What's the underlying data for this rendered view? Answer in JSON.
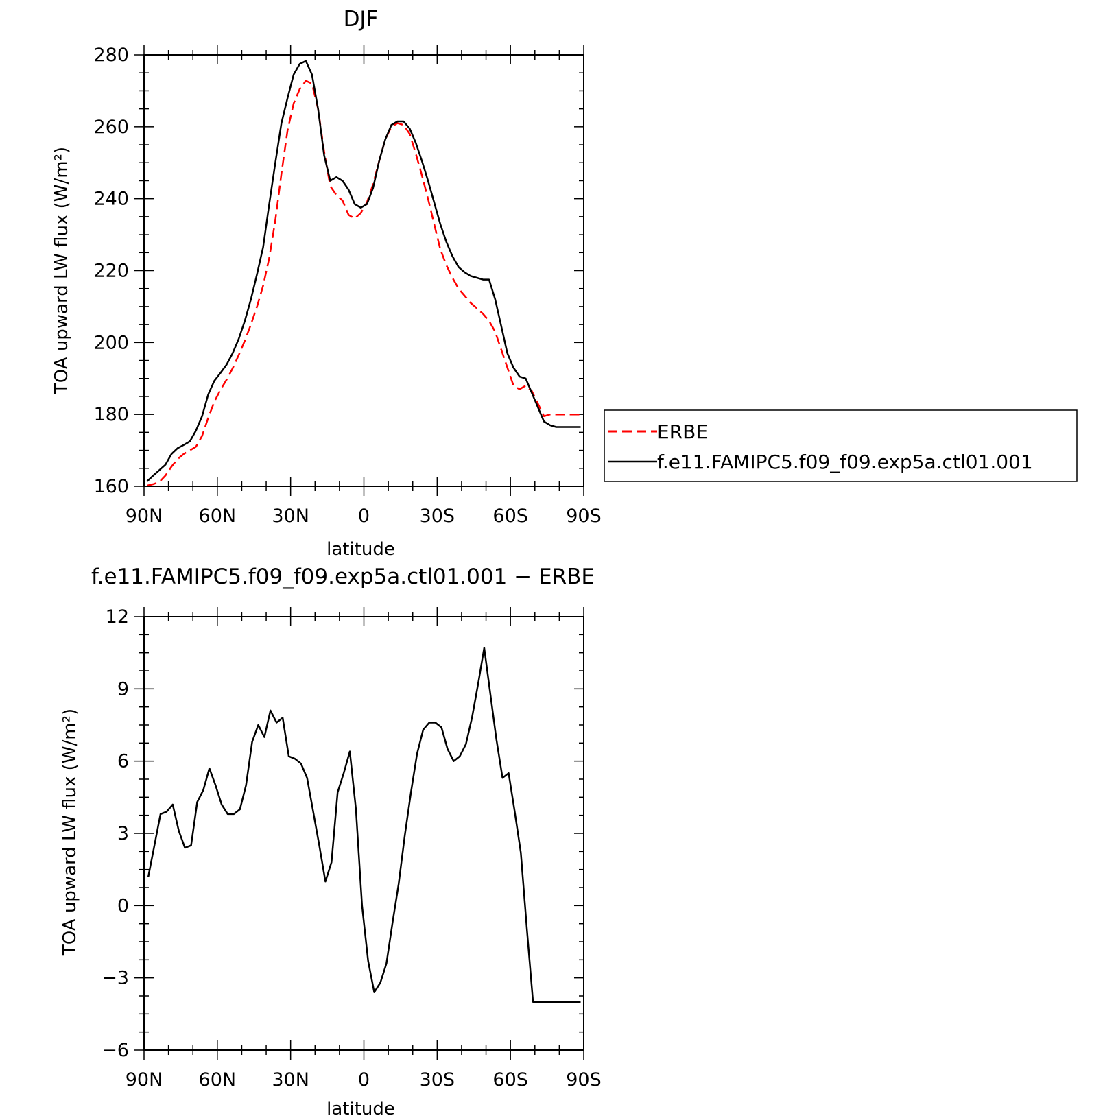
{
  "chart_data": [
    {
      "type": "line",
      "title": "DJF",
      "xlabel": "latitude",
      "ylabel": "TOA upward LW flux (W/m²)",
      "xlim": [
        90,
        -90
      ],
      "ylim": [
        160,
        280
      ],
      "yticks": [
        160,
        180,
        200,
        220,
        240,
        260,
        280
      ],
      "xticks": [
        90,
        60,
        30,
        0,
        -30,
        -60,
        -90
      ],
      "xtick_labels": [
        "90N",
        "60N",
        "30N",
        "0",
        "30S",
        "60S",
        "90S"
      ],
      "legend": {
        "placement": "right",
        "entries": [
          "ERBE",
          "f.e11.FAMIPC5.f09_f09.exp5a.ctl01.001"
        ]
      },
      "series": [
        {
          "name": "ERBE",
          "color": "#ff0000",
          "style": "dashed",
          "x": [
            88.75,
            86.25,
            83.75,
            81.25,
            78.75,
            76.25,
            73.75,
            71.25,
            68.75,
            66.25,
            63.75,
            61.25,
            58.75,
            56.25,
            53.75,
            51.25,
            48.75,
            46.25,
            43.75,
            41.25,
            38.75,
            36.25,
            33.75,
            31.25,
            28.75,
            26.25,
            23.75,
            21.25,
            18.75,
            16.25,
            13.75,
            11.25,
            8.75,
            6.25,
            3.75,
            1.25,
            -1.25,
            -3.75,
            -6.25,
            -8.75,
            -11.25,
            -13.75,
            -16.25,
            -18.75,
            -21.25,
            -23.75,
            -26.25,
            -28.75,
            -31.25,
            -33.75,
            -36.25,
            -38.75,
            -41.25,
            -43.75,
            -46.25,
            -48.75,
            -51.25,
            -53.75,
            -56.25,
            -58.75,
            -61.25,
            -63.75,
            -66.25,
            -68.75,
            -71.25,
            -73.75,
            -76.25,
            -78.75,
            -81.25,
            -83.75,
            -86.25,
            -88.75
          ],
          "y": [
            160.2,
            160.6,
            161.2,
            163.0,
            165.5,
            167.6,
            169.0,
            170.0,
            171.0,
            174.0,
            179.0,
            183.5,
            186.8,
            189.6,
            192.8,
            196.5,
            200.5,
            205.0,
            210.0,
            215.8,
            223.5,
            234.0,
            247.0,
            259.0,
            266.5,
            270.5,
            272.8,
            272.0,
            265.0,
            253.0,
            243.5,
            241.0,
            239.5,
            235.5,
            234.5,
            236.0,
            239.0,
            244.0,
            250.5,
            256.5,
            260.0,
            261.0,
            260.5,
            258.0,
            252.5,
            246.5,
            240.0,
            233.0,
            226.0,
            221.5,
            218.0,
            215.0,
            213.0,
            211.0,
            209.5,
            208.0,
            206.0,
            203.0,
            198.0,
            193.0,
            188.0,
            187.0,
            188.0,
            186.5,
            183.0,
            179.5,
            180.0,
            180.0,
            180.0,
            180.0,
            180.0,
            180.0
          ]
        },
        {
          "name": "f.e11.FAMIPC5.f09_f09.exp5a.ctl01.001",
          "color": "#000000",
          "style": "solid",
          "x": [
            88.75,
            86.25,
            83.75,
            81.25,
            78.75,
            76.25,
            73.75,
            71.25,
            68.75,
            66.25,
            63.75,
            61.25,
            58.75,
            56.25,
            53.75,
            51.25,
            48.75,
            46.25,
            43.75,
            41.25,
            38.75,
            36.25,
            33.75,
            31.25,
            28.75,
            26.25,
            23.75,
            21.25,
            18.75,
            16.25,
            13.75,
            11.25,
            8.75,
            6.25,
            3.75,
            1.25,
            -1.25,
            -3.75,
            -6.25,
            -8.75,
            -11.25,
            -13.75,
            -16.25,
            -18.75,
            -21.25,
            -23.75,
            -26.25,
            -28.75,
            -31.25,
            -33.75,
            -36.25,
            -38.75,
            -41.25,
            -43.75,
            -46.25,
            -48.75,
            -51.25,
            -53.75,
            -56.25,
            -58.75,
            -61.25,
            -63.75,
            -66.25,
            -68.75,
            -71.25,
            -73.75,
            -76.25,
            -78.75,
            -81.25,
            -83.75,
            -86.25,
            -88.75
          ],
          "y": [
            161.4,
            163.0,
            164.5,
            166.0,
            169.0,
            170.6,
            171.5,
            172.5,
            175.5,
            179.5,
            185.5,
            189.3,
            191.5,
            193.8,
            197.0,
            201.0,
            206.0,
            212.0,
            219.0,
            226.5,
            238.5,
            250.0,
            261.0,
            268.0,
            274.5,
            277.5,
            278.3,
            274.5,
            265.0,
            252.0,
            245.0,
            246.0,
            245.0,
            242.5,
            238.5,
            237.5,
            238.5,
            243.0,
            250.5,
            256.5,
            260.5,
            261.5,
            261.5,
            259.5,
            255.5,
            250.5,
            245.0,
            239.0,
            233.0,
            228.0,
            224.0,
            221.0,
            219.5,
            218.5,
            218.0,
            217.5,
            217.5,
            212.0,
            204.5,
            197.0,
            193.0,
            190.5,
            190.0,
            186.0,
            182.0,
            178.0,
            177.0,
            176.5,
            176.5,
            176.5,
            176.5,
            176.5
          ]
        }
      ]
    },
    {
      "type": "line",
      "title": "f.e11.FAMIPC5.f09_f09.exp5a.ctl01.001 − ERBE",
      "xlabel": "latitude",
      "ylabel": "TOA upward LW flux (W/m²)",
      "xlim": [
        90,
        -90
      ],
      "ylim": [
        -6,
        12
      ],
      "yticks": [
        -6,
        -3,
        0,
        3,
        6,
        9,
        12
      ],
      "ytick_labels": [
        "−6",
        "−3",
        "0",
        "3",
        "6",
        "9",
        "12"
      ],
      "xticks": [
        90,
        60,
        30,
        0,
        -30,
        -60,
        -90
      ],
      "xtick_labels": [
        "90N",
        "60N",
        "30N",
        "0",
        "30S",
        "60S",
        "90S"
      ],
      "series": [
        {
          "color": "#000000",
          "style": "solid",
          "x": [
            88.25,
            85.75,
            83.25,
            80.75,
            78.25,
            75.75,
            73.25,
            70.75,
            68.25,
            65.75,
            63.25,
            60.75,
            58.25,
            55.75,
            53.25,
            50.75,
            48.25,
            45.75,
            43.25,
            40.75,
            38.25,
            35.75,
            33.25,
            30.75,
            28.25,
            25.75,
            23.25,
            20.75,
            18.25,
            15.75,
            13.25,
            10.75,
            8.25,
            5.75,
            3.25,
            0.75,
            -1.75,
            -4.25,
            -6.75,
            -9.25,
            -11.75,
            -14.25,
            -16.75,
            -19.25,
            -21.75,
            -24.25,
            -26.75,
            -29.25,
            -31.75,
            -34.25,
            -36.75,
            -39.25,
            -41.75,
            -44.25,
            -46.75,
            -49.25,
            -51.75,
            -54.25,
            -56.75,
            -59.25,
            -61.75,
            -64.25,
            -66.75,
            -69.25,
            -71.75,
            -74.25,
            -76.75,
            -79.25,
            -81.75,
            -84.25,
            -86.75,
            -88.75
          ],
          "y": [
            1.2,
            2.5,
            3.8,
            3.9,
            4.2,
            3.1,
            2.4,
            2.5,
            4.3,
            4.8,
            5.7,
            5.0,
            4.2,
            3.8,
            3.8,
            4.0,
            5.0,
            6.8,
            7.5,
            7.0,
            8.1,
            7.6,
            7.8,
            6.2,
            6.1,
            5.9,
            5.3,
            3.9,
            2.5,
            1.0,
            1.8,
            4.7,
            5.5,
            6.4,
            4.0,
            0.0,
            -2.3,
            -3.6,
            -3.2,
            -2.4,
            -0.7,
            0.9,
            2.9,
            4.7,
            6.3,
            7.3,
            7.6,
            7.6,
            7.4,
            6.5,
            6.0,
            6.2,
            6.7,
            7.8,
            9.2,
            10.7,
            8.8,
            6.9,
            5.3,
            5.5,
            3.9,
            2.2,
            -1.0,
            -4.0,
            -4.0,
            -4.0,
            -4.0,
            -4.0,
            -4.0,
            -4.0,
            -4.0,
            -4.0
          ]
        }
      ]
    }
  ]
}
